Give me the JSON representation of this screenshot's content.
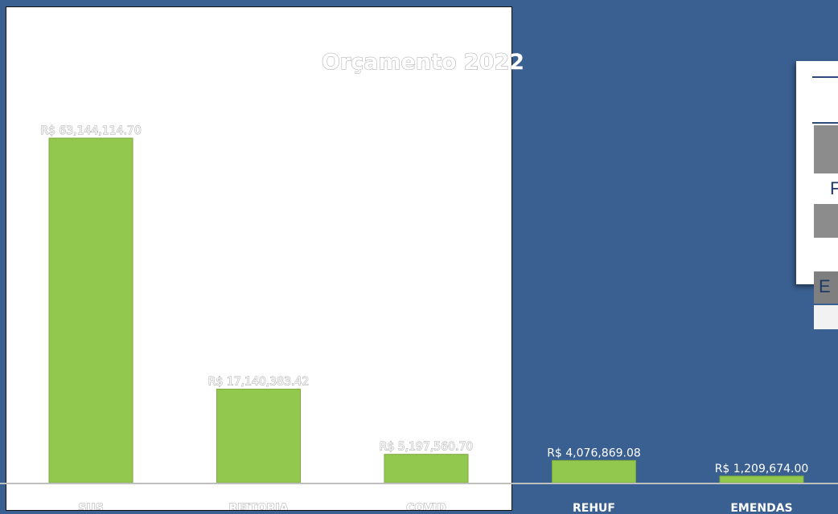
{
  "chart_data": {
    "type": "bar",
    "title": "Orçamento 2022",
    "categories": [
      "SUS",
      "REITORIA",
      "COVID",
      "REHUF",
      "EMENDAS"
    ],
    "values": [
      63144114.7,
      17140383.42,
      5197560.7,
      4076869.08,
      1209674.0
    ],
    "data_labels": [
      "R$ 63,144,114.70",
      "R$ 17,140,383.42",
      "R$ 5,197,560.70",
      "R$ 4,076,869.08",
      "R$ 1,209,674.00"
    ],
    "ylim": [
      0,
      63144114.7
    ],
    "grid": false,
    "legend": "none",
    "colors": {
      "bar": "#92c84e",
      "bar_edge": "#7ea83e",
      "baseline": "#bfbfbf"
    }
  },
  "side_table": {
    "row_letters": [
      "F",
      "E"
    ],
    "colors": {
      "header_rule": "#2c4a78",
      "gray_cell": "#8c8c8c",
      "light_cell": "#f2f2f2"
    }
  },
  "colors": {
    "background": "#3a5f91",
    "text_light": "#ffffff",
    "text_outline": "#a6a6a6"
  }
}
